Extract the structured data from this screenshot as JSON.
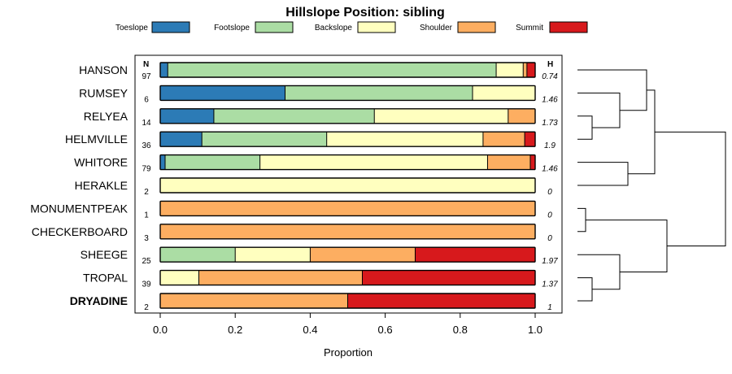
{
  "chart_data": {
    "type": "bar",
    "orientation": "horizontal-stacked",
    "title": "Hillslope Position: sibling",
    "xlabel": "Proportion",
    "xlim": [
      0,
      1
    ],
    "xticks": [
      "0.0",
      "0.2",
      "0.4",
      "0.6",
      "0.8",
      "1.0"
    ],
    "n_header": "N",
    "h_header": "H",
    "legend": [
      {
        "name": "Toeslope",
        "color": "#2c7bb6"
      },
      {
        "name": "Footslope",
        "color": "#abdda4"
      },
      {
        "name": "Backslope",
        "color": "#ffffbf"
      },
      {
        "name": "Shoulder",
        "color": "#fdae61"
      },
      {
        "name": "Summit",
        "color": "#d7191c"
      }
    ],
    "rows": [
      {
        "name": "HANSON",
        "n": "97",
        "h": "0.74",
        "bold": false,
        "values": [
          0.02,
          0.876,
          0.072,
          0.01,
          0.022
        ]
      },
      {
        "name": "RUMSEY",
        "n": "6",
        "h": "1.46",
        "bold": false,
        "values": [
          0.333,
          0.5,
          0.167,
          0,
          0
        ]
      },
      {
        "name": "RELYEA",
        "n": "14",
        "h": "1.73",
        "bold": false,
        "values": [
          0.143,
          0.428,
          0.357,
          0.072,
          0
        ]
      },
      {
        "name": "HELMVILLE",
        "n": "36",
        "h": "1.9",
        "bold": false,
        "values": [
          0.111,
          0.333,
          0.417,
          0.111,
          0.028
        ]
      },
      {
        "name": "WHITORE",
        "n": "79",
        "h": "1.46",
        "bold": false,
        "values": [
          0.013,
          0.253,
          0.607,
          0.114,
          0.013
        ]
      },
      {
        "name": "HERAKLE",
        "n": "2",
        "h": "0",
        "bold": false,
        "values": [
          0,
          0,
          1,
          0,
          0
        ]
      },
      {
        "name": "MONUMENTPEAK",
        "n": "1",
        "h": "0",
        "bold": false,
        "values": [
          0,
          0,
          0,
          1,
          0
        ]
      },
      {
        "name": "CHECKERBOARD",
        "n": "3",
        "h": "0",
        "bold": false,
        "values": [
          0,
          0,
          0,
          1,
          0
        ]
      },
      {
        "name": "SHEEGE",
        "n": "25",
        "h": "1.97",
        "bold": false,
        "values": [
          0,
          0.2,
          0.2,
          0.28,
          0.32
        ]
      },
      {
        "name": "TROPAL",
        "n": "39",
        "h": "1.37",
        "bold": false,
        "values": [
          0,
          0,
          0.103,
          0.436,
          0.461
        ]
      },
      {
        "name": "DRYADINE",
        "n": "2",
        "h": "1",
        "bold": true,
        "values": [
          0,
          0,
          0,
          0.5,
          0.5
        ]
      }
    ]
  }
}
